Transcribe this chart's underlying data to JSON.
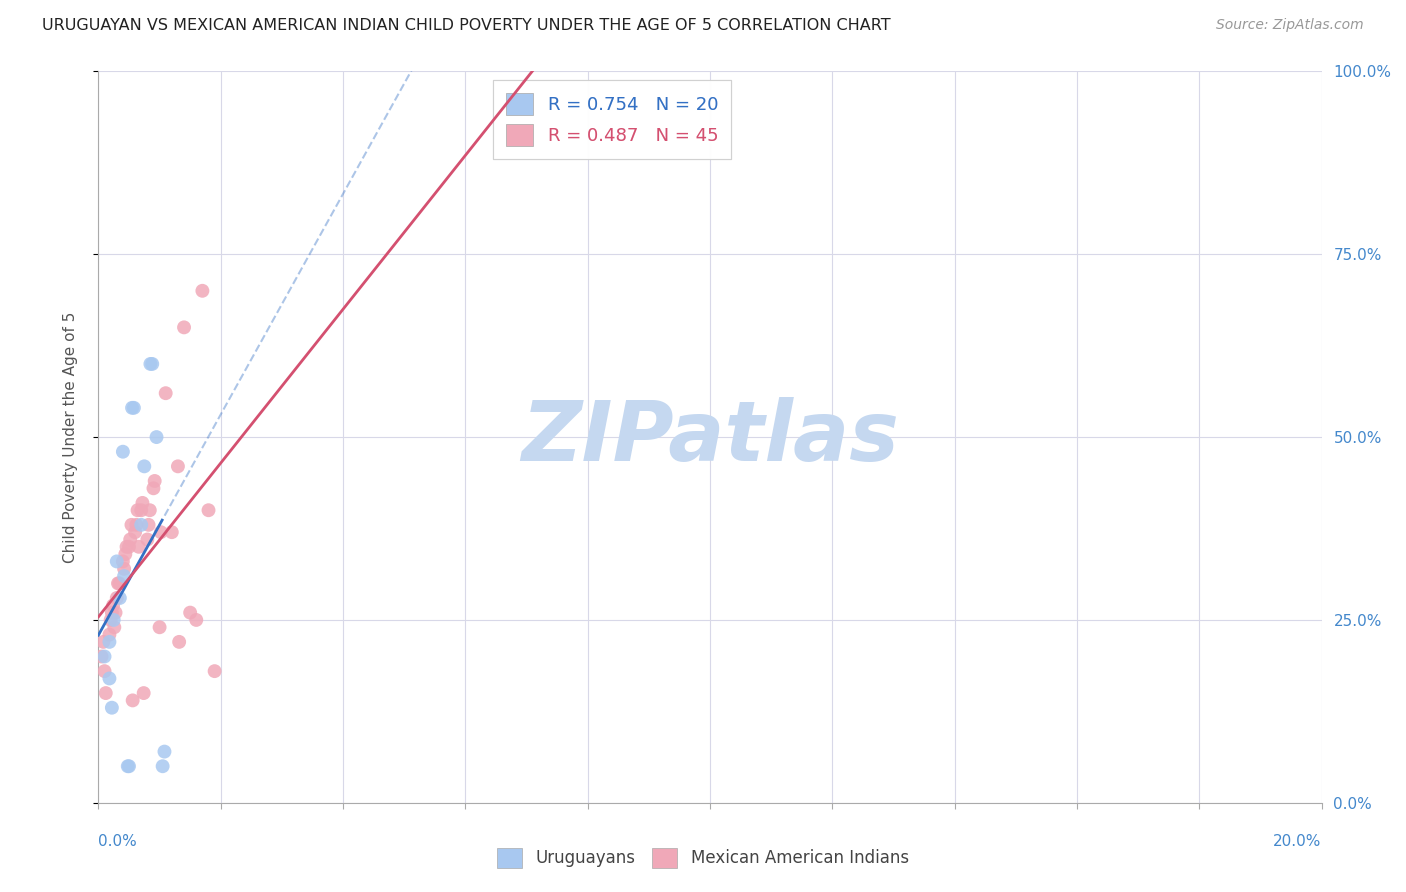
{
  "title": "URUGUAYAN VS MEXICAN AMERICAN INDIAN CHILD POVERTY UNDER THE AGE OF 5 CORRELATION CHART",
  "source": "Source: ZipAtlas.com",
  "ylabel": "Child Poverty Under the Age of 5",
  "uruguayan_x": [
    0.18,
    0.22,
    0.1,
    0.18,
    0.25,
    0.35,
    0.42,
    0.3,
    0.4,
    0.55,
    0.58,
    0.75,
    0.85,
    0.88,
    0.7,
    0.95,
    0.48,
    0.5,
    1.05,
    1.08
  ],
  "uruguayan_y": [
    17.0,
    13.0,
    20.0,
    22.0,
    25.0,
    28.0,
    31.0,
    33.0,
    48.0,
    54.0,
    54.0,
    46.0,
    60.0,
    60.0,
    38.0,
    50.0,
    5.0,
    5.0,
    5.0,
    7.0
  ],
  "mexican_x": [
    0.05,
    0.08,
    0.1,
    0.12,
    0.18,
    0.2,
    0.22,
    0.24,
    0.26,
    0.28,
    0.3,
    0.32,
    0.34,
    0.4,
    0.42,
    0.44,
    0.46,
    0.5,
    0.52,
    0.54,
    0.56,
    0.6,
    0.62,
    0.64,
    0.66,
    0.7,
    0.72,
    0.74,
    0.8,
    0.82,
    0.84,
    0.9,
    0.92,
    1.0,
    1.02,
    1.1,
    1.2,
    1.3,
    1.32,
    1.4,
    1.5,
    1.6,
    1.7,
    1.8,
    1.9
  ],
  "mexican_y": [
    20.0,
    22.0,
    18.0,
    15.0,
    23.0,
    25.0,
    26.0,
    27.0,
    24.0,
    26.0,
    28.0,
    30.0,
    30.0,
    33.0,
    32.0,
    34.0,
    35.0,
    35.0,
    36.0,
    38.0,
    14.0,
    37.0,
    38.0,
    40.0,
    35.0,
    40.0,
    41.0,
    15.0,
    36.0,
    38.0,
    40.0,
    43.0,
    44.0,
    24.0,
    37.0,
    56.0,
    37.0,
    46.0,
    22.0,
    65.0,
    26.0,
    25.0,
    70.0,
    40.0,
    18.0
  ],
  "uruguayan_color": "#a8c8f0",
  "mexican_color": "#f0a8b8",
  "blue_line_color": "#3370c4",
  "pink_line_color": "#d45070",
  "R_uruguayan": 0.754,
  "N_uruguayan": 20,
  "R_mexican": 0.487,
  "N_mexican": 45,
  "background_color": "#ffffff",
  "grid_color": "#d8d8e8",
  "watermark_text": "ZIPatlas",
  "watermark_color": "#c5d8f0",
  "legend_labels": [
    "Uruguayans",
    "Mexican American Indians"
  ],
  "xlim": [
    0,
    20
  ],
  "ylim": [
    0,
    100
  ],
  "xtick_step": 2.0,
  "ytick_step": 25.0
}
